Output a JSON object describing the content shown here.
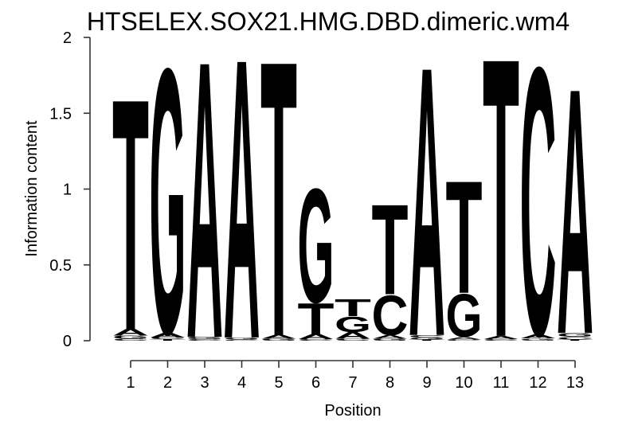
{
  "chart_data": {
    "type": "sequence-logo",
    "title": "HTSELEX.SOX21.HMG.DBD.dimeric.wm4",
    "xlabel": "Position",
    "ylabel": "Information content",
    "ylim": [
      0,
      2
    ],
    "yticks": [
      0,
      0.5,
      1,
      1.5,
      2
    ],
    "ytick_labels": [
      "0",
      "0.5",
      "1",
      "1.5",
      "2"
    ],
    "xticks": [
      1,
      2,
      3,
      4,
      5,
      6,
      7,
      8,
      9,
      10,
      11,
      12,
      13
    ],
    "legend": "none",
    "grid": false,
    "colors": {
      "A": "#00ce00",
      "C": "#1414ff",
      "G": "#ffa500",
      "T": "#ff0000"
    },
    "consensus": "TGAATGTTATTCA",
    "stacks": [
      {
        "position": 1,
        "total_ic": 1.64,
        "letters": [
          {
            "base": "C",
            "ic": 0.012
          },
          {
            "base": "G",
            "ic": 0.022
          },
          {
            "base": "A",
            "ic": 0.045
          },
          {
            "base": "T",
            "ic": 1.56
          }
        ]
      },
      {
        "position": 2,
        "total_ic": 1.84,
        "letters": [
          {
            "base": "T",
            "ic": 0.01
          },
          {
            "base": "C",
            "ic": 0.012
          },
          {
            "base": "A",
            "ic": 0.032
          },
          {
            "base": "G",
            "ic": 1.79
          }
        ]
      },
      {
        "position": 3,
        "total_ic": 1.9,
        "letters": [
          {
            "base": "C",
            "ic": 0.01
          },
          {
            "base": "G",
            "ic": 0.016
          },
          {
            "base": "A",
            "ic": 1.87
          }
        ]
      },
      {
        "position": 4,
        "total_ic": 1.91,
        "letters": [
          {
            "base": "C",
            "ic": 0.008
          },
          {
            "base": "G",
            "ic": 0.014
          },
          {
            "base": "A",
            "ic": 1.89
          }
        ]
      },
      {
        "position": 5,
        "total_ic": 1.9,
        "letters": [
          {
            "base": "G",
            "ic": 0.012
          },
          {
            "base": "A",
            "ic": 0.026
          },
          {
            "base": "T",
            "ic": 1.86
          }
        ]
      },
      {
        "position": 6,
        "total_ic": 1.03,
        "letters": [
          {
            "base": "C",
            "ic": 0.01
          },
          {
            "base": "A",
            "ic": 0.035
          },
          {
            "base": "T",
            "ic": 0.21
          },
          {
            "base": "G",
            "ic": 0.77
          }
        ]
      },
      {
        "position": 7,
        "total_ic": 0.28,
        "letters": [
          {
            "base": "C",
            "ic": 0.012
          },
          {
            "base": "A",
            "ic": 0.045
          },
          {
            "base": "G",
            "ic": 0.105
          },
          {
            "base": "T",
            "ic": 0.115
          }
        ]
      },
      {
        "position": 8,
        "total_ic": 0.92,
        "letters": [
          {
            "base": "G",
            "ic": 0.012
          },
          {
            "base": "A",
            "ic": 0.025
          },
          {
            "base": "C",
            "ic": 0.27
          },
          {
            "base": "T",
            "ic": 0.61
          }
        ]
      },
      {
        "position": 9,
        "total_ic": 1.86,
        "letters": [
          {
            "base": "T",
            "ic": 0.008
          },
          {
            "base": "G",
            "ic": 0.012
          },
          {
            "base": "C",
            "ic": 0.018
          },
          {
            "base": "A",
            "ic": 1.82
          }
        ]
      },
      {
        "position": 10,
        "total_ic": 1.08,
        "letters": [
          {
            "base": "C",
            "ic": 0.008
          },
          {
            "base": "A",
            "ic": 0.018
          },
          {
            "base": "G",
            "ic": 0.29
          },
          {
            "base": "T",
            "ic": 0.76
          }
        ]
      },
      {
        "position": 11,
        "total_ic": 1.92,
        "letters": [
          {
            "base": "C",
            "ic": 0.01
          },
          {
            "base": "A",
            "ic": 0.022
          },
          {
            "base": "T",
            "ic": 1.885
          }
        ]
      },
      {
        "position": 12,
        "total_ic": 1.85,
        "letters": [
          {
            "base": "G",
            "ic": 0.015
          },
          {
            "base": "A",
            "ic": 0.028
          },
          {
            "base": "C",
            "ic": 1.81
          }
        ]
      },
      {
        "position": 13,
        "total_ic": 1.71,
        "letters": [
          {
            "base": "T",
            "ic": 0.008
          },
          {
            "base": "C",
            "ic": 0.018
          },
          {
            "base": "G",
            "ic": 0.025
          },
          {
            "base": "A",
            "ic": 1.66
          }
        ]
      }
    ]
  }
}
